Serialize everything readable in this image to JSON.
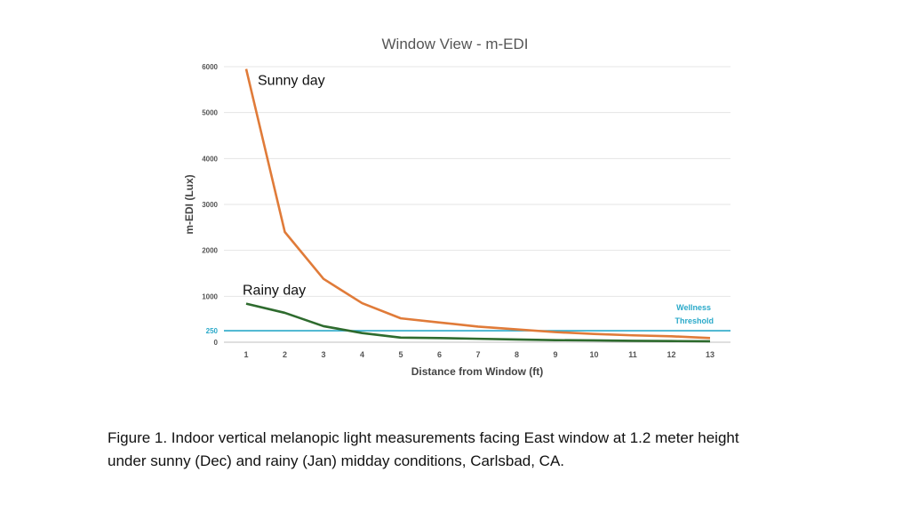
{
  "chart_data": {
    "type": "line",
    "title": "Window View - m-EDI",
    "xlabel": "Distance from Window (ft)",
    "ylabel": "m-EDI (Lux)",
    "x": [
      1,
      2,
      3,
      4,
      5,
      6,
      7,
      8,
      9,
      10,
      11,
      12,
      13
    ],
    "x_tick_labels": [
      "1",
      "2",
      "3",
      "4",
      "5",
      "6",
      "7",
      "8",
      "9",
      "10",
      "11",
      "12",
      "13"
    ],
    "y_tick_labels": [
      "0",
      "250",
      "1000",
      "2000",
      "3000",
      "4000",
      "5000",
      "6000"
    ],
    "y_ticks": [
      0,
      250,
      1000,
      2000,
      3000,
      4000,
      5000,
      6000
    ],
    "ylim": [
      0,
      6000
    ],
    "xlim": [
      1,
      13
    ],
    "grid": true,
    "series": [
      {
        "name": "Sunny day",
        "color": "#E07B39",
        "values": [
          5950,
          2400,
          1380,
          850,
          520,
          430,
          340,
          280,
          220,
          180,
          150,
          130,
          90
        ]
      },
      {
        "name": "Rainy day",
        "color": "#2E6B2E",
        "values": [
          840,
          640,
          350,
          200,
          100,
          90,
          75,
          60,
          45,
          40,
          30,
          25,
          20
        ]
      }
    ],
    "threshold": {
      "value": 250,
      "label_line1": "Wellness",
      "label_line2": "Threshold",
      "tick_label": "250",
      "color": "#2AA9C9"
    }
  },
  "caption": {
    "line1": "Figure 1.  Indoor vertical melanopic light measurements facing East window at 1.2 meter height",
    "line2": "under sunny (Dec) and rainy (Jan) midday conditions, Carlsbad, CA."
  }
}
